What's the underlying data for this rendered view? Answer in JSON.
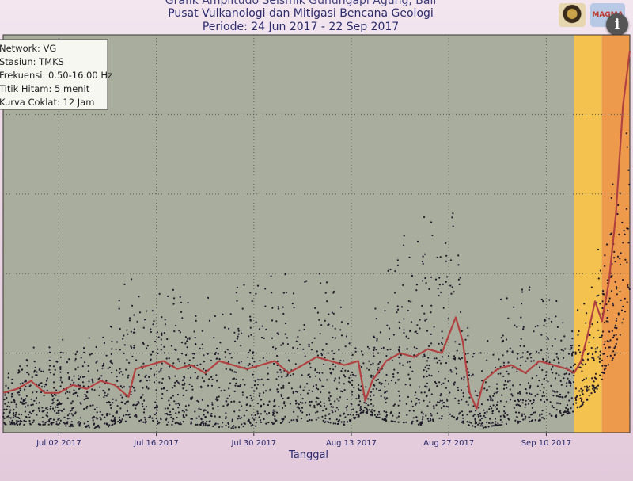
{
  "header": {
    "title_partial": "Grafik Amplitudo Seismik Gunungapi Agung, Bali",
    "title": "Pusat Vulkanologi dan Mitigasi Bencana Geologi",
    "period": "Periode: 24 Jun 2017 - 22 Sep 2017",
    "logo_right_text": "MAGMA"
  },
  "info_button": {
    "label": "i",
    "icon": "info-icon"
  },
  "colors": {
    "plot_bg": "#a9ad9d",
    "dots": "#1e1a2a",
    "curve": "#b24242",
    "zone_yellow": "#f3c24f",
    "zone_orange": "#ee9a4c",
    "grid": "#5a5d55"
  },
  "legend": {
    "lines": [
      "Network: VG",
      "Stasiun: TMKS",
      "Frekuensi: 0.50-16.00 Hz",
      "Titik Hitam: 5 menit",
      "Kurva Coklat: 12 Jam"
    ]
  },
  "chart_data": {
    "type": "scatter",
    "title": "Pusat Vulkanologi dan Mitigasi Bencana Geologi",
    "subtitle": "Periode: 24 Jun 2017 - 22 Sep 2017",
    "xlabel": "Tanggal",
    "ylabel": "",
    "x_range": [
      "2017-06-24",
      "2017-09-22"
    ],
    "y_range_relative": [
      0,
      1
    ],
    "grid": true,
    "legend_position": "top-left",
    "x_ticks": [
      "Jul 02 2017",
      "Jul 16 2017",
      "Jul 30 2017",
      "Aug 13 2017",
      "Aug 27 2017",
      "Sep 10 2017"
    ],
    "alert_zones": [
      {
        "from": "2017-09-14",
        "to": "2017-09-18",
        "level": "yellow"
      },
      {
        "from": "2017-09-18",
        "to": "2017-09-22",
        "level": "orange"
      }
    ],
    "series": [
      {
        "name": "Kurva Coklat: 12 Jam",
        "kind": "line",
        "points": [
          [
            "2017-06-24",
            0.1
          ],
          [
            "2017-06-26",
            0.11
          ],
          [
            "2017-06-28",
            0.13
          ],
          [
            "2017-06-30",
            0.1
          ],
          [
            "2017-07-02",
            0.1
          ],
          [
            "2017-07-04",
            0.12
          ],
          [
            "2017-07-06",
            0.11
          ],
          [
            "2017-07-08",
            0.13
          ],
          [
            "2017-07-10",
            0.12
          ],
          [
            "2017-07-12",
            0.09
          ],
          [
            "2017-07-13",
            0.16
          ],
          [
            "2017-07-15",
            0.17
          ],
          [
            "2017-07-17",
            0.18
          ],
          [
            "2017-07-19",
            0.16
          ],
          [
            "2017-07-21",
            0.17
          ],
          [
            "2017-07-23",
            0.15
          ],
          [
            "2017-07-25",
            0.18
          ],
          [
            "2017-07-27",
            0.17
          ],
          [
            "2017-07-29",
            0.16
          ],
          [
            "2017-07-31",
            0.17
          ],
          [
            "2017-08-02",
            0.18
          ],
          [
            "2017-08-04",
            0.15
          ],
          [
            "2017-08-06",
            0.17
          ],
          [
            "2017-08-08",
            0.19
          ],
          [
            "2017-08-10",
            0.18
          ],
          [
            "2017-08-12",
            0.17
          ],
          [
            "2017-08-14",
            0.18
          ],
          [
            "2017-08-15",
            0.08
          ],
          [
            "2017-08-16",
            0.13
          ],
          [
            "2017-08-18",
            0.18
          ],
          [
            "2017-08-20",
            0.2
          ],
          [
            "2017-08-22",
            0.19
          ],
          [
            "2017-08-24",
            0.21
          ],
          [
            "2017-08-26",
            0.2
          ],
          [
            "2017-08-28",
            0.29
          ],
          [
            "2017-08-29",
            0.23
          ],
          [
            "2017-08-30",
            0.1
          ],
          [
            "2017-08-31",
            0.06
          ],
          [
            "2017-09-01",
            0.13
          ],
          [
            "2017-09-03",
            0.16
          ],
          [
            "2017-09-05",
            0.17
          ],
          [
            "2017-09-07",
            0.15
          ],
          [
            "2017-09-09",
            0.18
          ],
          [
            "2017-09-11",
            0.17
          ],
          [
            "2017-09-13",
            0.16
          ],
          [
            "2017-09-14",
            0.15
          ],
          [
            "2017-09-15",
            0.18
          ],
          [
            "2017-09-16",
            0.25
          ],
          [
            "2017-09-17",
            0.33
          ],
          [
            "2017-09-18",
            0.28
          ],
          [
            "2017-09-19",
            0.38
          ],
          [
            "2017-09-20",
            0.55
          ],
          [
            "2017-09-21",
            0.82
          ],
          [
            "2017-09-22",
            0.96
          ]
        ]
      },
      {
        "name": "Titik Hitam: 5 menit",
        "kind": "scatter",
        "envelope": [
          [
            "2017-06-24",
            0.02,
            0.2
          ],
          [
            "2017-07-01",
            0.02,
            0.24
          ],
          [
            "2017-07-08",
            0.01,
            0.26
          ],
          [
            "2017-07-12",
            0.03,
            0.42
          ],
          [
            "2017-07-17",
            0.02,
            0.38
          ],
          [
            "2017-07-22",
            0.02,
            0.34
          ],
          [
            "2017-07-27",
            0.01,
            0.4
          ],
          [
            "2017-08-01",
            0.02,
            0.42
          ],
          [
            "2017-08-07",
            0.03,
            0.44
          ],
          [
            "2017-08-12",
            0.02,
            0.32
          ],
          [
            "2017-08-15",
            0.05,
            0.2
          ],
          [
            "2017-08-18",
            0.03,
            0.46
          ],
          [
            "2017-08-23",
            0.02,
            0.56
          ],
          [
            "2017-08-27",
            0.04,
            0.64
          ],
          [
            "2017-08-31",
            0.01,
            0.18
          ],
          [
            "2017-09-04",
            0.02,
            0.36
          ],
          [
            "2017-09-09",
            0.03,
            0.4
          ],
          [
            "2017-09-14",
            0.05,
            0.3
          ],
          [
            "2017-09-17",
            0.1,
            0.44
          ],
          [
            "2017-09-20",
            0.2,
            0.7
          ],
          [
            "2017-09-22",
            0.35,
            1.0
          ]
        ]
      }
    ]
  }
}
